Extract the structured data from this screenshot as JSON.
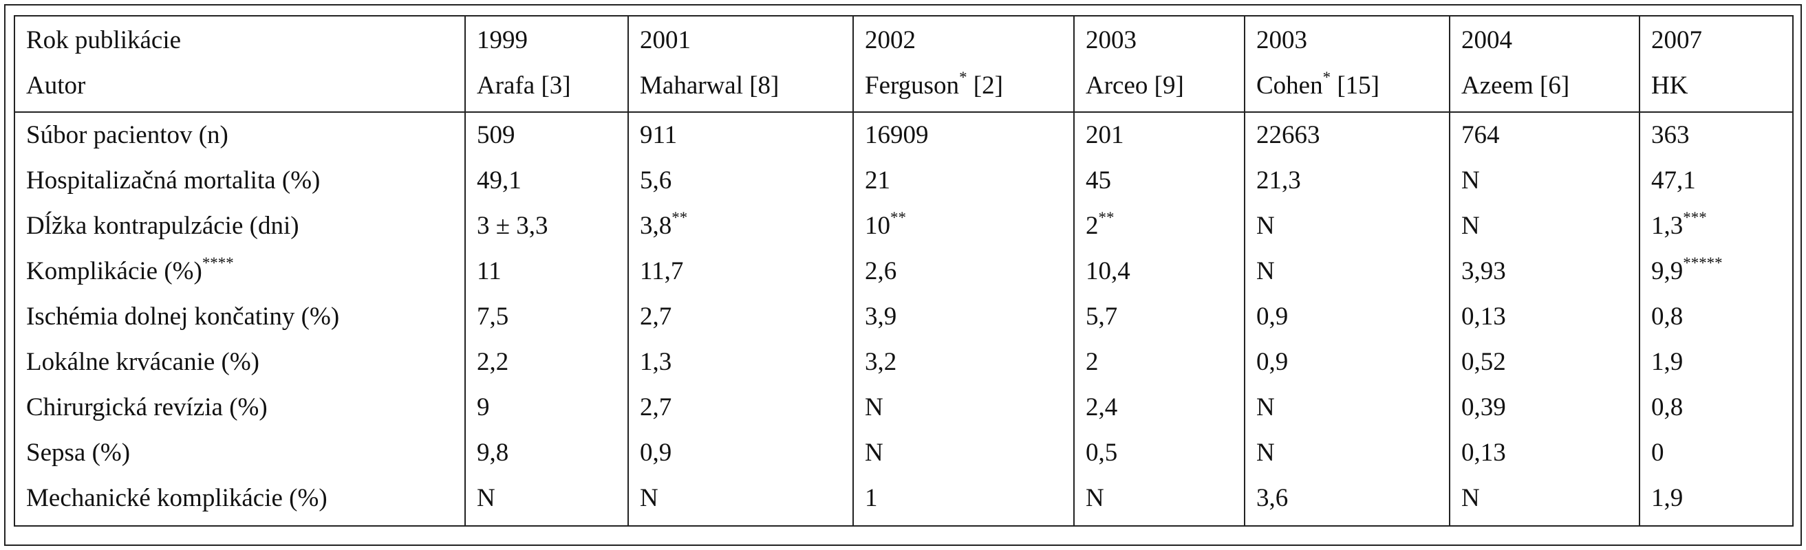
{
  "header": {
    "labels": [
      "Rok publikácie",
      "Autor"
    ],
    "years": [
      "1999",
      "2001",
      "2002",
      "2003",
      "2003",
      "2004",
      "2007"
    ],
    "authors": [
      "Arafa [3]",
      "Maharwal [8]",
      "Ferguson* [2]",
      "Arceo [9]",
      "Cohen* [15]",
      "Azeem [6]",
      "HK"
    ]
  },
  "rows": [
    {
      "label": "Súbor pacientov (n)",
      "values": [
        "509",
        "911",
        "16909",
        "201",
        "22663",
        "764",
        "363"
      ]
    },
    {
      "label": "Hospitalizačná mortalita (%)",
      "values": [
        "49,1",
        "5,6",
        "21",
        "45",
        "21,3",
        "N",
        "47,1"
      ]
    },
    {
      "label": "Dĺžka kontrapulzácie (dni)",
      "values": [
        "3 ± 3,3",
        "3,8**",
        "10**",
        "2**",
        "N",
        "N",
        "1,3***"
      ]
    },
    {
      "label": "Komplikácie (%)****",
      "values": [
        "11",
        "11,7",
        "2,6",
        "10,4",
        "N",
        "3,93",
        "9,9*****"
      ]
    },
    {
      "label": "Ischémia dolnej končatiny (%)",
      "values": [
        "7,5",
        "2,7",
        "3,9",
        "5,7",
        "0,9",
        "0,13",
        "0,8"
      ]
    },
    {
      "label": "Lokálne krvácanie (%)",
      "values": [
        "2,2",
        "1,3",
        "3,2",
        "2",
        "0,9",
        "0,52",
        "1,9"
      ]
    },
    {
      "label": "Chirurgická revízia (%)",
      "values": [
        "9",
        "2,7",
        "N",
        "2,4",
        "N",
        "0,39",
        "0,8"
      ]
    },
    {
      "label": "Sepsa (%)",
      "values": [
        "9,8",
        "0,9",
        "N",
        "0,5",
        "N",
        "0,13",
        "0"
      ]
    },
    {
      "label": "Mechanické komplikácie (%)",
      "values": [
        "N",
        "N",
        "1",
        "N",
        "3,6",
        "N",
        "1,9"
      ]
    }
  ]
}
